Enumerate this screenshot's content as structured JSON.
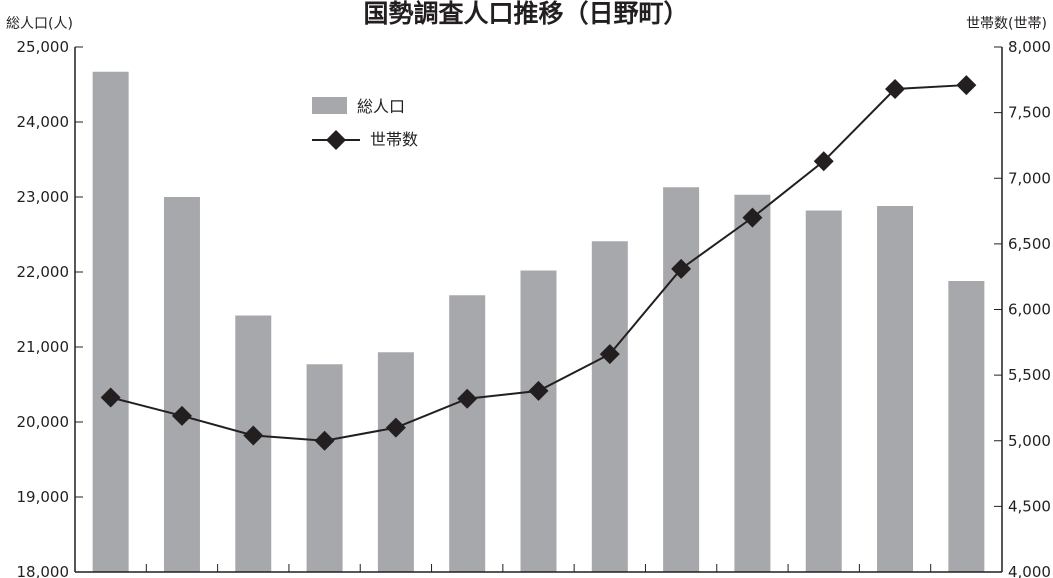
{
  "chart_data": {
    "type": "bar",
    "title": "国勢調査人口推移（日野町）",
    "y_left_label": "総人口(人)",
    "y_right_label": "世帯数(世帯)",
    "y_left_ticks": [
      "25,000",
      "24,000",
      "23,000",
      "22,000",
      "21,000",
      "20,000",
      "19,000",
      "18,000"
    ],
    "y_right_ticks": [
      "8,000",
      "7,500",
      "7,000",
      "6,500",
      "6,000",
      "5,500",
      "5,000",
      "4,500",
      "4,000"
    ],
    "ylim_left": [
      18000,
      25000
    ],
    "ylim_right": [
      4000,
      8000
    ],
    "legend_position": "top-left",
    "bar_color": "#a7a8ab",
    "line_color": "#231f20",
    "series": [
      {
        "name": "総人口",
        "type": "bar",
        "axis": "left",
        "values": [
          24670,
          23000,
          21420,
          20770,
          20930,
          21690,
          22020,
          22410,
          23130,
          23030,
          22820,
          22880,
          21880
        ]
      },
      {
        "name": "世帯数",
        "type": "line",
        "axis": "right",
        "marker": "diamond",
        "values": [
          5330,
          5190,
          5040,
          5000,
          5100,
          5320,
          5380,
          5660,
          6310,
          6700,
          7130,
          7680,
          7710
        ]
      }
    ]
  }
}
